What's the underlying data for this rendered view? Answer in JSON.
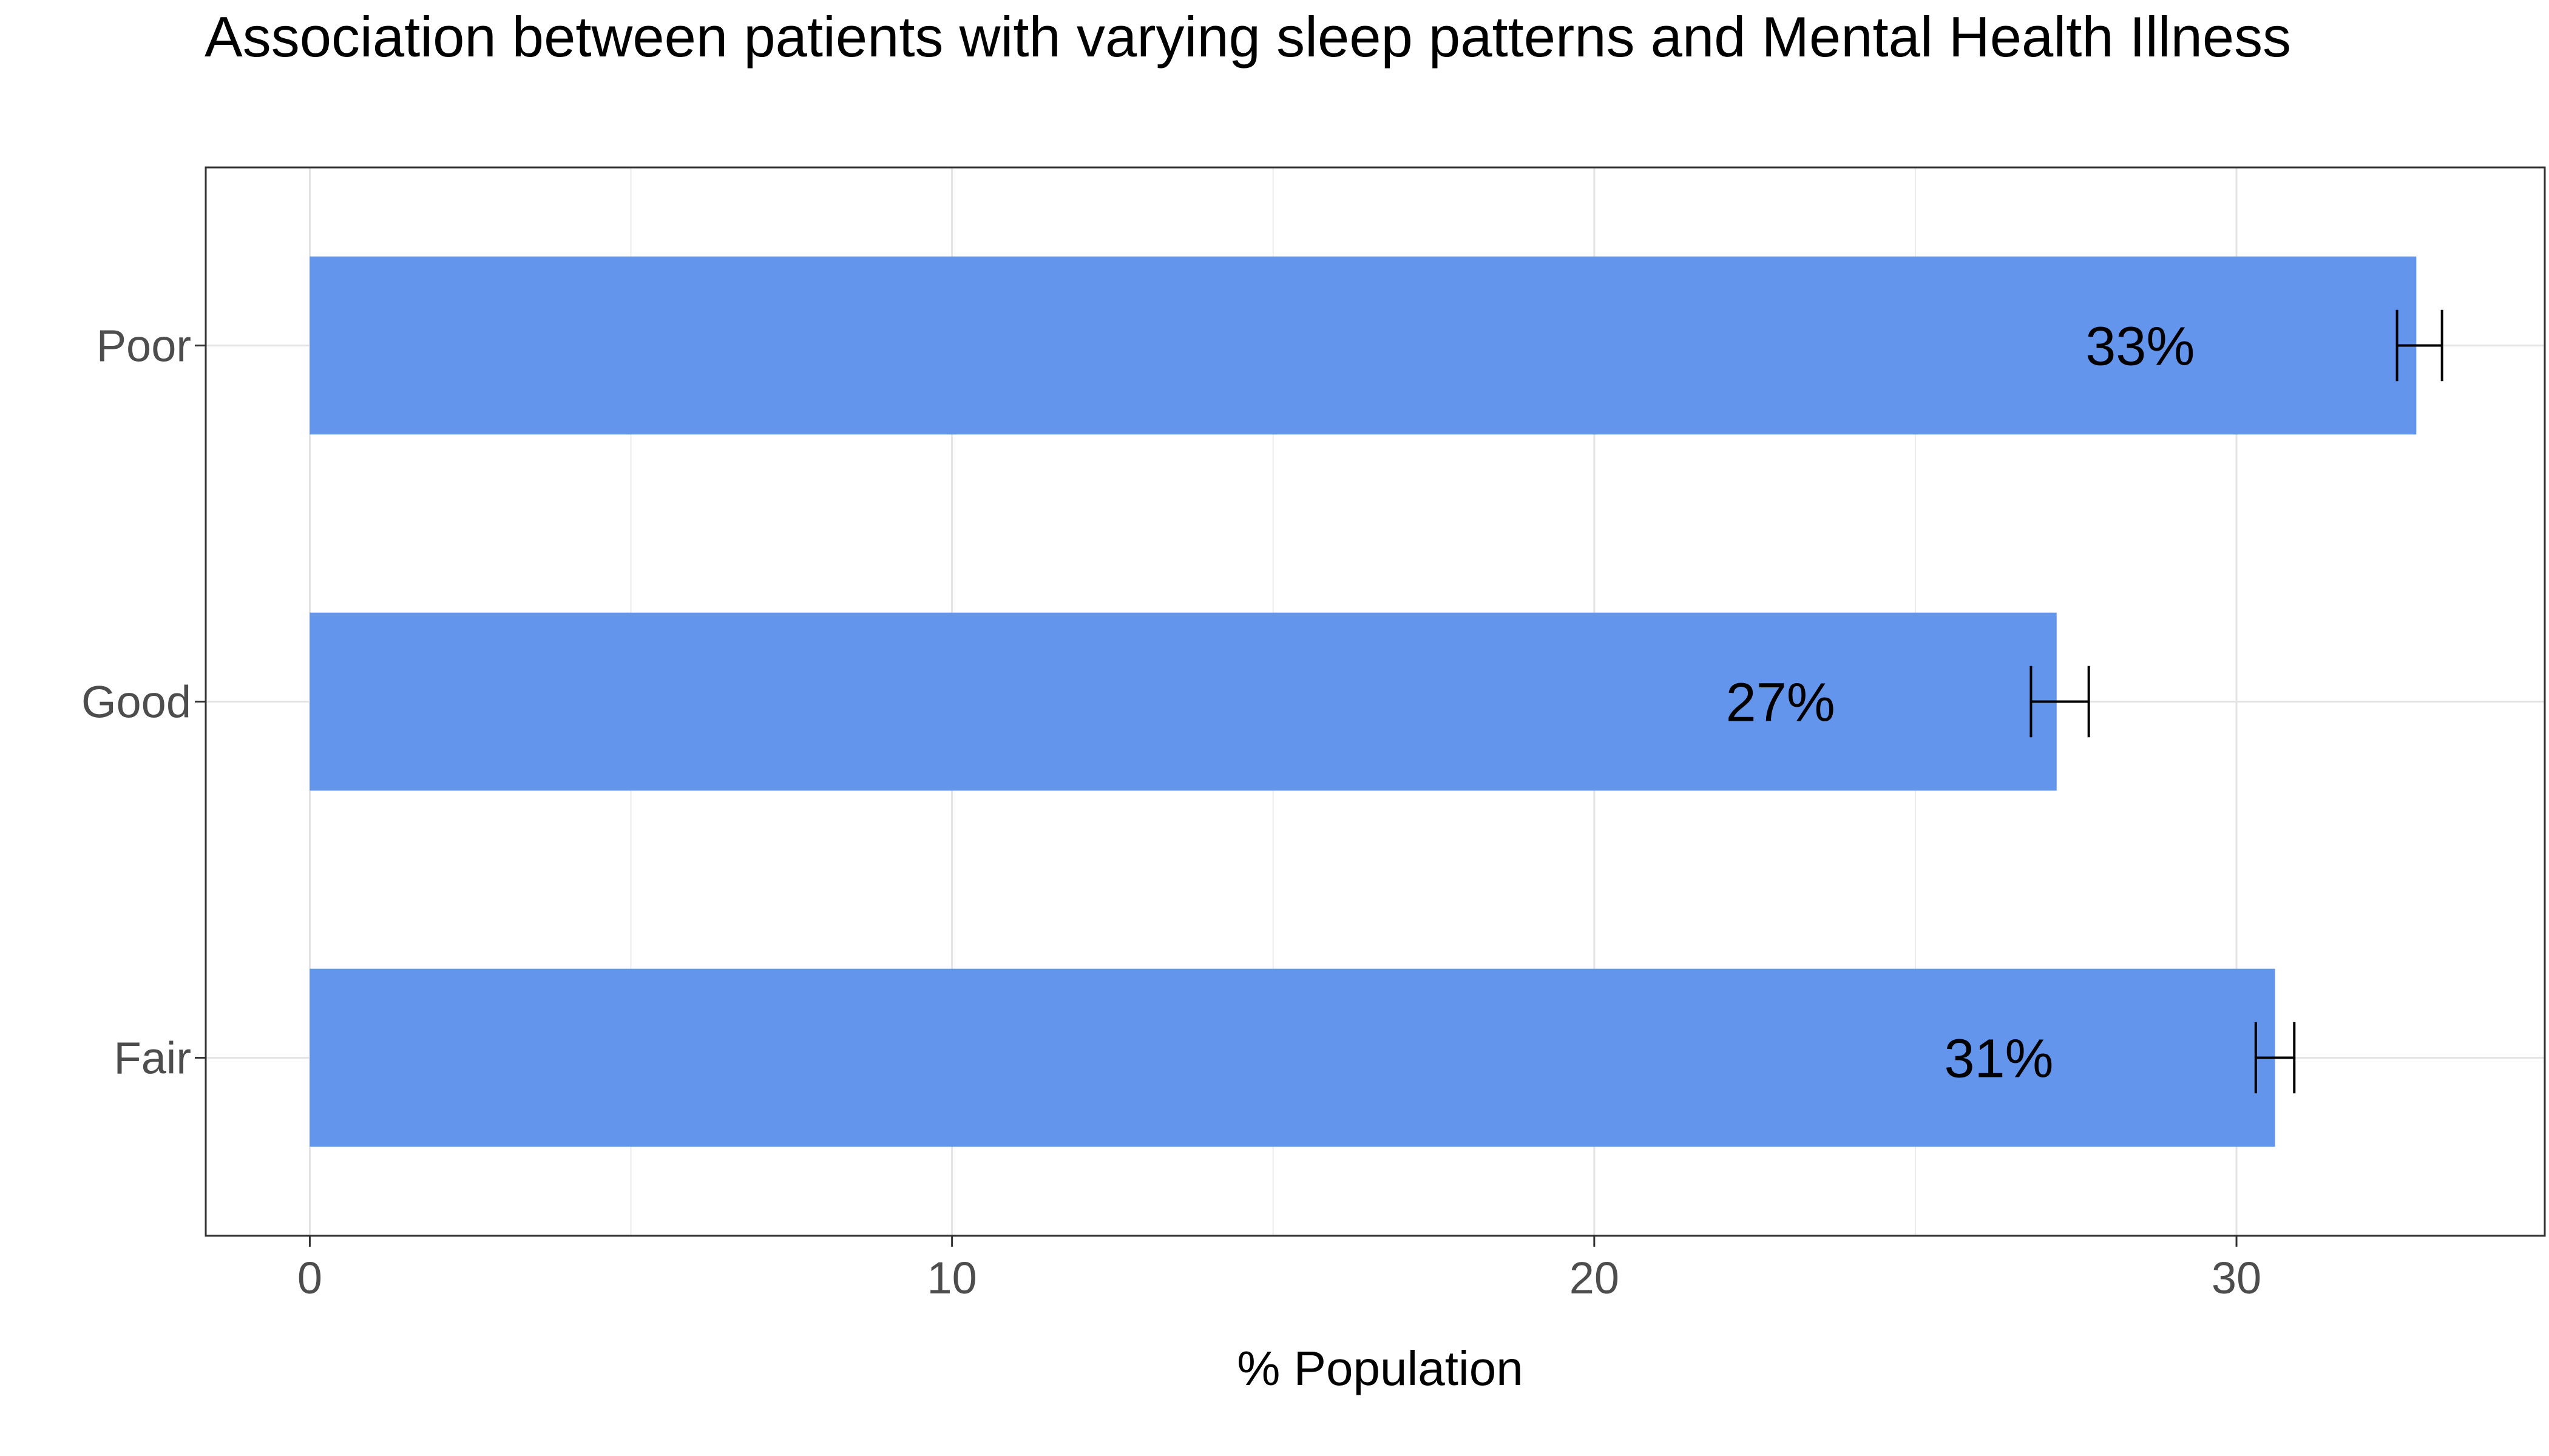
{
  "chart_data": {
    "type": "bar",
    "orientation": "horizontal",
    "title": "Association between patients with varying sleep patterns and Mental Health Illness",
    "xlabel": "% Population",
    "ylabel": "",
    "categories": [
      "Fair",
      "Good",
      "Poor"
    ],
    "values": [
      30.6,
      27.2,
      32.8
    ],
    "error_low": [
      30.3,
      26.8,
      32.5
    ],
    "error_high": [
      30.9,
      27.7,
      33.2
    ],
    "data_labels": [
      "31%",
      "27%",
      "33%"
    ],
    "xlim": [
      -1.62,
      34.8
    ],
    "x_ticks": [
      0,
      10,
      20,
      30
    ],
    "x_tick_labels": [
      "0",
      "10",
      "20",
      "30"
    ],
    "grid": true,
    "bar_color": "#6495ED"
  }
}
